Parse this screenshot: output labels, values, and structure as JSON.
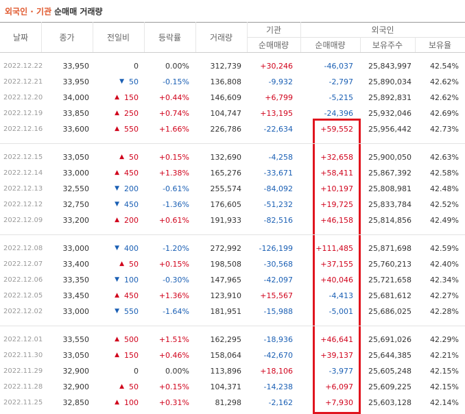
{
  "title": {
    "main": "외국인 · 기관",
    "sub": "순매매 거래량"
  },
  "header": {
    "cols": [
      "날짜",
      "종가",
      "전일비",
      "등락률",
      "거래량"
    ],
    "institution": {
      "label": "기관",
      "cols": [
        "순매매량"
      ]
    },
    "foreign": {
      "label": "외국인",
      "cols": [
        "순매매량",
        "보유주수",
        "보유율"
      ]
    }
  },
  "table": {
    "groups": [
      [
        [
          "2022.12.22",
          "33,950",
          "0",
          "0.00%",
          "312,739",
          "+30,246",
          "-46,037",
          "25,843,997",
          "42.54%"
        ],
        [
          "2022.12.21",
          "33,950",
          "50",
          "-0.15%",
          "136,808",
          "-9,932",
          "-2,797",
          "25,890,034",
          "42.62%"
        ],
        [
          "2022.12.20",
          "34,000",
          "150",
          "+0.44%",
          "146,609",
          "+6,799",
          "-5,215",
          "25,892,831",
          "42.62%"
        ],
        [
          "2022.12.19",
          "33,850",
          "250",
          "+0.74%",
          "104,747",
          "+13,195",
          "-24,396",
          "25,932,046",
          "42.69%"
        ],
        [
          "2022.12.16",
          "33,600",
          "550",
          "+1.66%",
          "226,786",
          "-22,634",
          "+59,552",
          "25,956,442",
          "42.73%"
        ]
      ],
      [
        [
          "2022.12.15",
          "33,050",
          "50",
          "+0.15%",
          "132,690",
          "-4,258",
          "+32,658",
          "25,900,050",
          "42.63%"
        ],
        [
          "2022.12.14",
          "33,000",
          "450",
          "+1.38%",
          "165,276",
          "-33,671",
          "+58,411",
          "25,867,392",
          "42.58%"
        ],
        [
          "2022.12.13",
          "32,550",
          "200",
          "-0.61%",
          "255,574",
          "-84,092",
          "+10,197",
          "25,808,981",
          "42.48%"
        ],
        [
          "2022.12.12",
          "32,750",
          "450",
          "-1.36%",
          "176,605",
          "-51,232",
          "+19,725",
          "25,833,784",
          "42.52%"
        ],
        [
          "2022.12.09",
          "33,200",
          "200",
          "+0.61%",
          "191,933",
          "-82,516",
          "+46,158",
          "25,814,856",
          "42.49%"
        ]
      ],
      [
        [
          "2022.12.08",
          "33,000",
          "400",
          "-1.20%",
          "272,992",
          "-126,199",
          "+111,485",
          "25,871,698",
          "42.59%"
        ],
        [
          "2022.12.07",
          "33,400",
          "50",
          "+0.15%",
          "198,508",
          "-30,568",
          "+37,155",
          "25,760,213",
          "42.40%"
        ],
        [
          "2022.12.06",
          "33,350",
          "100",
          "-0.30%",
          "147,965",
          "-42,097",
          "+40,046",
          "25,721,658",
          "42.34%"
        ],
        [
          "2022.12.05",
          "33,450",
          "450",
          "+1.36%",
          "123,910",
          "+15,567",
          "-4,413",
          "25,681,612",
          "42.27%"
        ],
        [
          "2022.12.02",
          "33,000",
          "550",
          "-1.64%",
          "181,951",
          "-15,988",
          "-5,001",
          "25,686,025",
          "42.28%"
        ]
      ],
      [
        [
          "2022.12.01",
          "33,550",
          "500",
          "+1.51%",
          "162,295",
          "-18,936",
          "+46,641",
          "25,691,026",
          "42.29%"
        ],
        [
          "2022.11.30",
          "33,050",
          "150",
          "+0.46%",
          "158,064",
          "-42,670",
          "+39,137",
          "25,644,385",
          "42.21%"
        ],
        [
          "2022.11.29",
          "32,900",
          "0",
          "0.00%",
          "113,896",
          "+18,106",
          "-3,977",
          "25,605,248",
          "42.15%"
        ],
        [
          "2022.11.28",
          "32,900",
          "50",
          "+0.15%",
          "104,371",
          "-14,238",
          "+6,097",
          "25,609,225",
          "42.15%"
        ],
        [
          "2022.11.25",
          "32,850",
          "100",
          "+0.31%",
          "81,298",
          "-2,162",
          "+7,930",
          "25,603,128",
          "42.14%"
        ]
      ]
    ]
  }
}
